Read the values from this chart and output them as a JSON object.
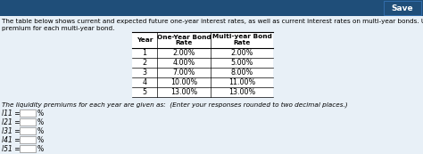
{
  "title_line1": "The table below shows current and expected future one-year interest rates, as well as current interest rates on multi-year bonds. Use the table to calculate the liquidity",
  "title_line2": "premium for each multi-year bond.",
  "col_headers": [
    "Year",
    "One-Year Bond\nRate",
    "Multi-year Bond\nRate"
  ],
  "rows": [
    [
      "1",
      "2.00%",
      "2.00%"
    ],
    [
      "2",
      "4.00%",
      "5.00%"
    ],
    [
      "3",
      "7.00%",
      "8.00%"
    ],
    [
      "4",
      "10.00%",
      "11.00%"
    ],
    [
      "5",
      "13.00%",
      "13.00%"
    ]
  ],
  "liquidity_text": "The liquidity premiums for each year are given as:  (Enter your responses rounded to two decimal places.)",
  "lp_labels": [
    "l11 =",
    "l21 =",
    "l31 =",
    "l41 =",
    "l51 ="
  ],
  "lp_suffix": "%",
  "top_bar_color": "#1f4e79",
  "bg_color": "#e8f0f7",
  "table_bg": "#f5f5f5",
  "save_btn_color": "#1f4e79",
  "font_size_title": 5.2,
  "font_size_table": 5.8,
  "font_size_lp": 5.5
}
